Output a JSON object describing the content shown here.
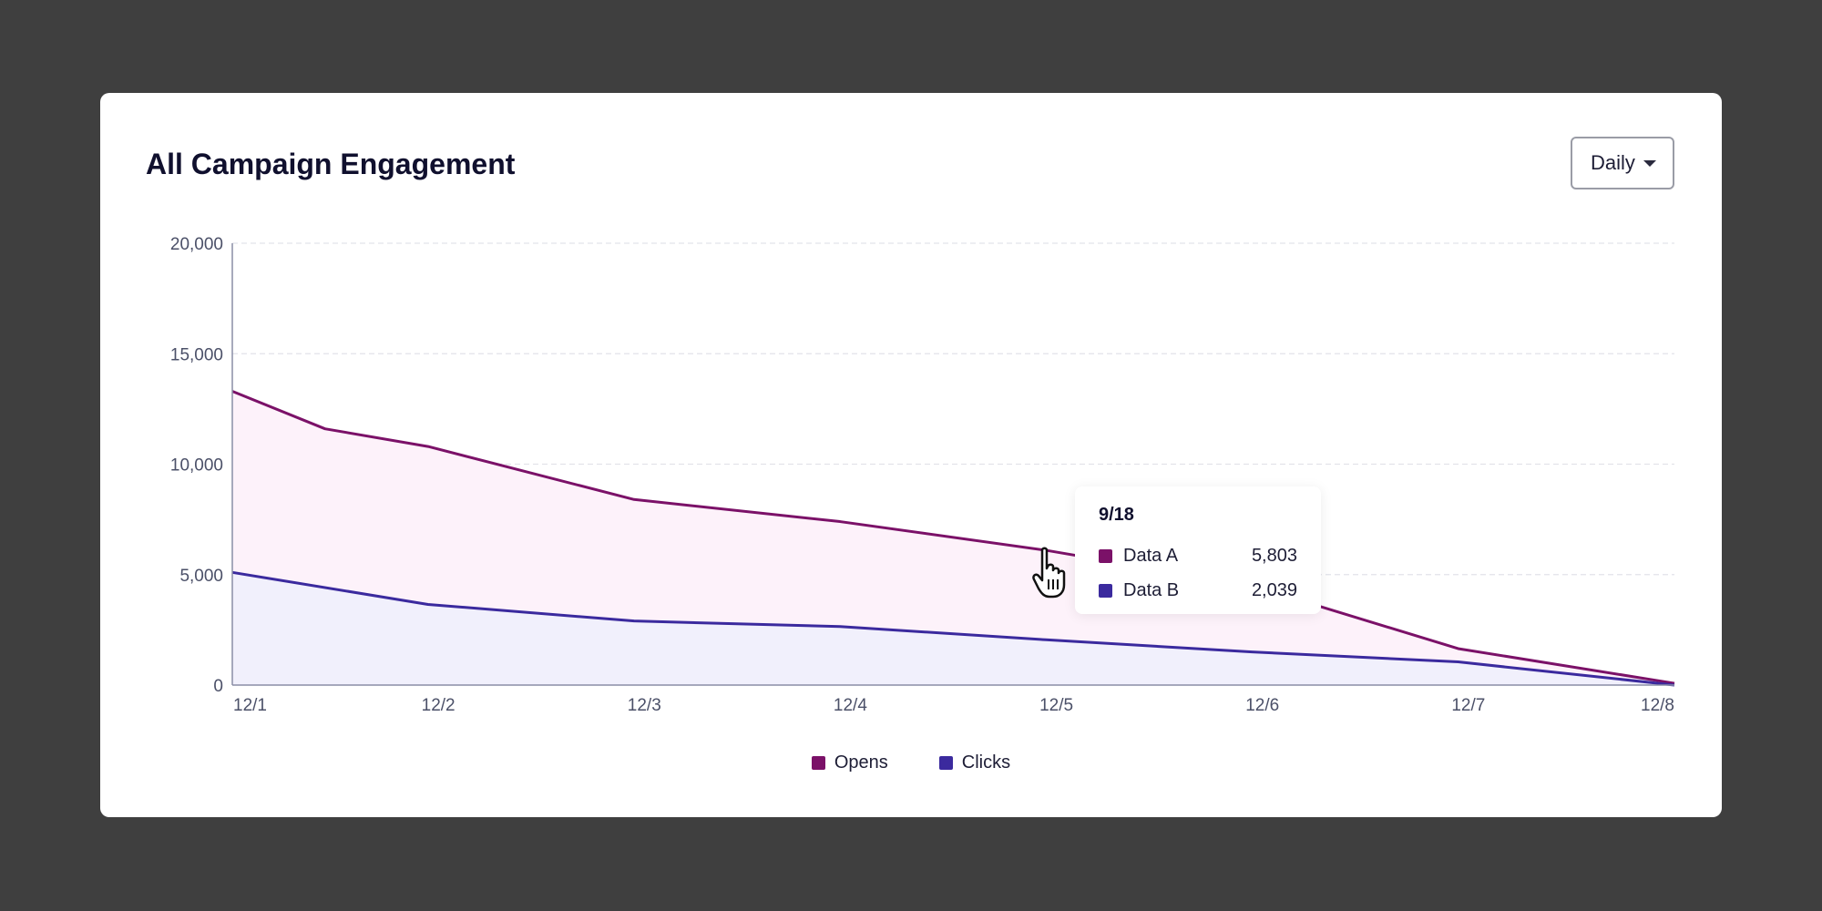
{
  "card": {
    "title": "All Campaign Engagement",
    "period_selector": {
      "selected": "Daily",
      "icon": "chevron-down-icon"
    }
  },
  "chart_data": {
    "type": "area",
    "title": "All Campaign Engagement",
    "xlabel": "",
    "ylabel": "",
    "x": [
      "12/1",
      "12/1.5",
      "12/2",
      "12/3",
      "12/4",
      "12/5",
      "12/6",
      "12/7",
      "12/8"
    ],
    "categories": [
      "12/1",
      "12/2",
      "12/3",
      "12/4",
      "12/5",
      "12/6",
      "12/7",
      "12/8"
    ],
    "y_ticks": [
      "0",
      "5,000",
      "10,000",
      "15,000",
      "20,000"
    ],
    "ylim": [
      0,
      20000
    ],
    "grid": true,
    "legend_position": "bottom-center",
    "series": [
      {
        "name": "Opens",
        "color": "#7b1168",
        "fill": "#fdf2fa",
        "points": [
          [
            0,
            13300
          ],
          [
            0.45,
            11600
          ],
          [
            0.95,
            10800
          ],
          [
            1.95,
            8400
          ],
          [
            2.95,
            7400
          ],
          [
            3.95,
            6100
          ],
          [
            4.95,
            4500
          ],
          [
            5.95,
            1650
          ],
          [
            7,
            80
          ]
        ]
      },
      {
        "name": "Clicks",
        "color": "#3b2a9e",
        "fill": "#f1f0fc",
        "points": [
          [
            0,
            5100
          ],
          [
            0.95,
            3650
          ],
          [
            1.95,
            2900
          ],
          [
            2.95,
            2650
          ],
          [
            3.95,
            2050
          ],
          [
            4.95,
            1500
          ],
          [
            5.95,
            1050
          ],
          [
            7,
            0
          ]
        ]
      }
    ]
  },
  "tooltip": {
    "title": "9/18",
    "rows": [
      {
        "label": "Data A",
        "value": "5,803",
        "color": "#7b1168"
      },
      {
        "label": "Data B",
        "value": "2,039",
        "color": "#3b2a9e"
      }
    ]
  },
  "legend": [
    {
      "label": "Opens",
      "color": "#7b1168"
    },
    {
      "label": "Clicks",
      "color": "#3b2a9e"
    }
  ],
  "cursor": {
    "icon": "hand-pointer-icon"
  }
}
